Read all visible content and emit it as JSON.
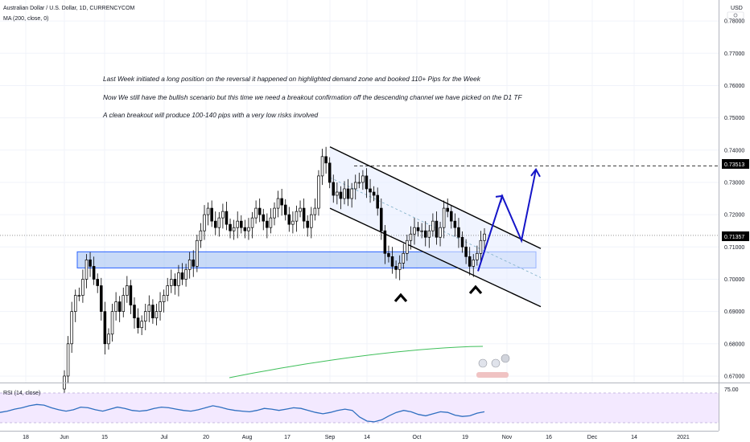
{
  "header": {
    "symbol_title": "Australian Dollar / U.S. Dollar, 1D, CURRENCYCOM",
    "ma_label": "MA (200, close, 0)",
    "rsi_label": "RSI (14, close)",
    "currency": "USD"
  },
  "annotations": [
    "Last Week initiated a long position on the reversal it happened on highlighted demand zone and booked 110+ Pips for the Week",
    "Now We still have the bullish scenario but this time we need a breakout confirmation off the descending channel we have picked on the D1 TF",
    "A clean breakout will produce 100-140 pips with a very low risks involved"
  ],
  "chart_data": {
    "type": "candlestick",
    "instrument": "Australian Dollar / U.S. Dollar",
    "timeframe": "1D",
    "source": "CURRENCYCOM",
    "x_tick_labels": [
      "18",
      "Jun",
      "15",
      "Jul",
      "20",
      "Aug",
      "17",
      "Sep",
      "14",
      "Oct",
      "19",
      "Nov",
      "16",
      "Dec",
      "14",
      "2021"
    ],
    "y_tick_labels": [
      "0.78000",
      "0.77000",
      "0.76000",
      "0.75000",
      "0.74000",
      "0.73000",
      "0.72000",
      "0.71000",
      "0.70000",
      "0.69000",
      "0.68000",
      "0.67000"
    ],
    "ylim": [
      0.668,
      0.7865
    ],
    "price_badges": [
      {
        "label": "0.73513",
        "value": 0.73513,
        "color": "#000000"
      },
      {
        "label": "0.71357",
        "value": 0.71357,
        "color": "#000000"
      }
    ],
    "close_series": [
      0.67,
      0.68,
      0.69,
      0.695,
      0.695,
      0.7,
      0.706,
      0.704,
      0.7,
      0.698,
      0.69,
      0.68,
      0.683,
      0.69,
      0.693,
      0.69,
      0.695,
      0.698,
      0.692,
      0.688,
      0.685,
      0.687,
      0.69,
      0.692,
      0.688,
      0.69,
      0.693,
      0.695,
      0.698,
      0.7,
      0.698,
      0.702,
      0.7,
      0.703,
      0.706,
      0.704,
      0.712,
      0.715,
      0.72,
      0.722,
      0.718,
      0.716,
      0.719,
      0.721,
      0.717,
      0.715,
      0.716,
      0.718,
      0.716,
      0.715,
      0.716,
      0.719,
      0.722,
      0.72,
      0.718,
      0.716,
      0.719,
      0.722,
      0.725,
      0.723,
      0.72,
      0.717,
      0.718,
      0.721,
      0.722,
      0.718,
      0.716,
      0.72,
      0.722,
      0.732,
      0.738,
      0.736,
      0.73,
      0.726,
      0.727,
      0.725,
      0.728,
      0.725,
      0.728,
      0.73,
      0.73,
      0.732,
      0.728,
      0.727,
      0.726,
      0.722,
      0.715,
      0.708,
      0.707,
      0.704,
      0.703,
      0.705,
      0.708,
      0.712,
      0.714,
      0.716,
      0.715,
      0.715,
      0.713,
      0.715,
      0.718,
      0.713,
      0.716,
      0.722,
      0.721,
      0.718,
      0.716,
      0.713,
      0.71,
      0.707,
      0.704,
      0.706,
      0.708,
      0.712,
      0.714
    ],
    "ma_200": {
      "name": "MA (200, close, 0)",
      "start": 0.6695,
      "end": 0.6792,
      "color": "#3fbf5a"
    },
    "demand_zone": {
      "low": 0.7035,
      "high": 0.7085,
      "color": "#9bbcf0"
    },
    "resistance_line": {
      "value": 0.73513,
      "style": "dashed"
    },
    "descending_channel": {
      "upper": {
        "from": 0.741,
        "to": 0.7095
      },
      "lower": {
        "from": 0.722,
        "to": 0.6915
      },
      "mid": {
        "from": 0.7315,
        "to": 0.7005
      }
    },
    "projection_path": [
      0.7025,
      0.7258,
      0.712,
      0.734
    ],
    "reversal_markers": 2,
    "rsi": {
      "label": "RSI (14, close)",
      "ticks": [
        "75.00"
      ],
      "band": [
        30,
        70
      ],
      "values": [
        45,
        47,
        50,
        52,
        55,
        57,
        56,
        52,
        49,
        47,
        49,
        53,
        52,
        49,
        47,
        50,
        53,
        51,
        48,
        47,
        48,
        51,
        53,
        52,
        50,
        48,
        47,
        49,
        52,
        55,
        53,
        50,
        48,
        47,
        46,
        48,
        51,
        50,
        48,
        50,
        52,
        51,
        48,
        45,
        43,
        45,
        48,
        50,
        48,
        38,
        32,
        31,
        34,
        40,
        45,
        48,
        46,
        42,
        40,
        43,
        46,
        45,
        41,
        39,
        40,
        44,
        46
      ]
    }
  }
}
